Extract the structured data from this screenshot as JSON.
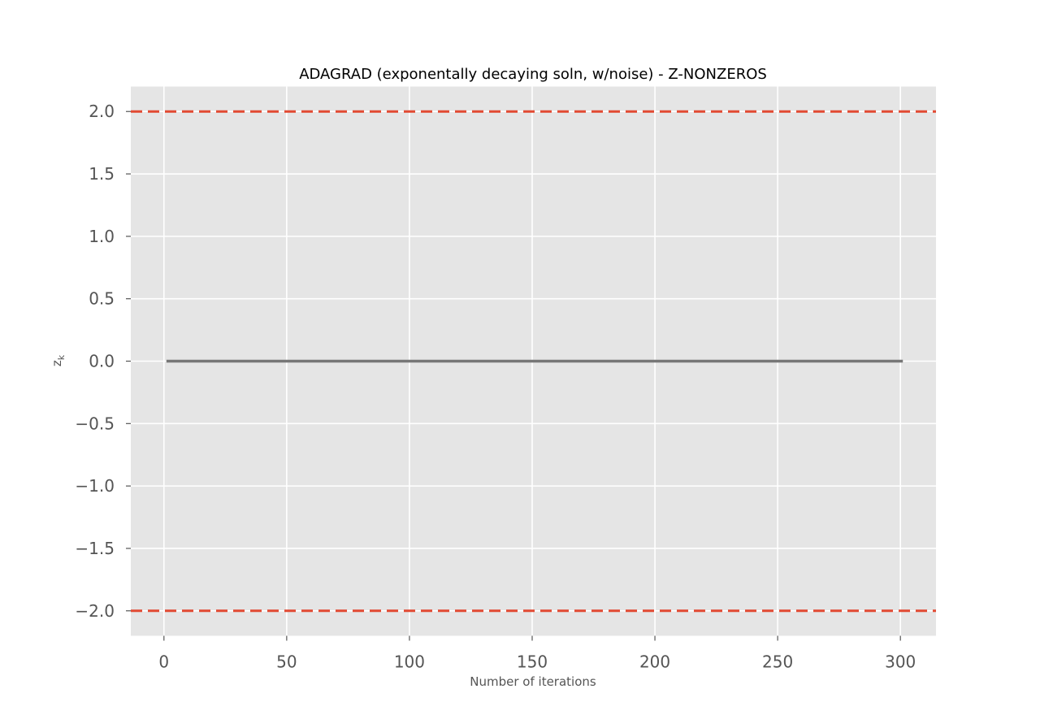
{
  "chart_data": {
    "type": "line",
    "title": "ADAGRAD (exponentally decaying soln, w/noise) - Z-NONZEROS",
    "xlabel": "Number of iterations",
    "ylabel": "z_k",
    "xlim": [
      -13.5,
      314.5
    ],
    "ylim": [
      -2.2,
      2.2
    ],
    "xticks": [
      0,
      50,
      100,
      150,
      200,
      250,
      300
    ],
    "xtick_labels": [
      "0",
      "50",
      "100",
      "150",
      "200",
      "250",
      "300"
    ],
    "yticks": [
      2.0,
      1.5,
      1.0,
      0.5,
      0.0,
      -0.5,
      -1.0,
      -1.5,
      -2.0
    ],
    "ytick_labels": [
      "2.0",
      "1.5",
      "1.0",
      "0.5",
      "0.0",
      "−0.5",
      "−1.0",
      "−1.5",
      "−2.0"
    ],
    "grid": true,
    "style": "ggplot",
    "colors": {
      "background": "#e5e5e5",
      "grid": "#ffffff",
      "series": "#777777",
      "bounds": "#e24a33"
    },
    "series": [
      {
        "x": [
          1,
          301
        ],
        "y": [
          0,
          0
        ]
      }
    ],
    "reference_lines": [
      {
        "orientation": "horizontal",
        "y": 2.0,
        "linestyle": "dashed"
      },
      {
        "orientation": "horizontal",
        "y": -2.0,
        "linestyle": "dashed"
      }
    ]
  }
}
